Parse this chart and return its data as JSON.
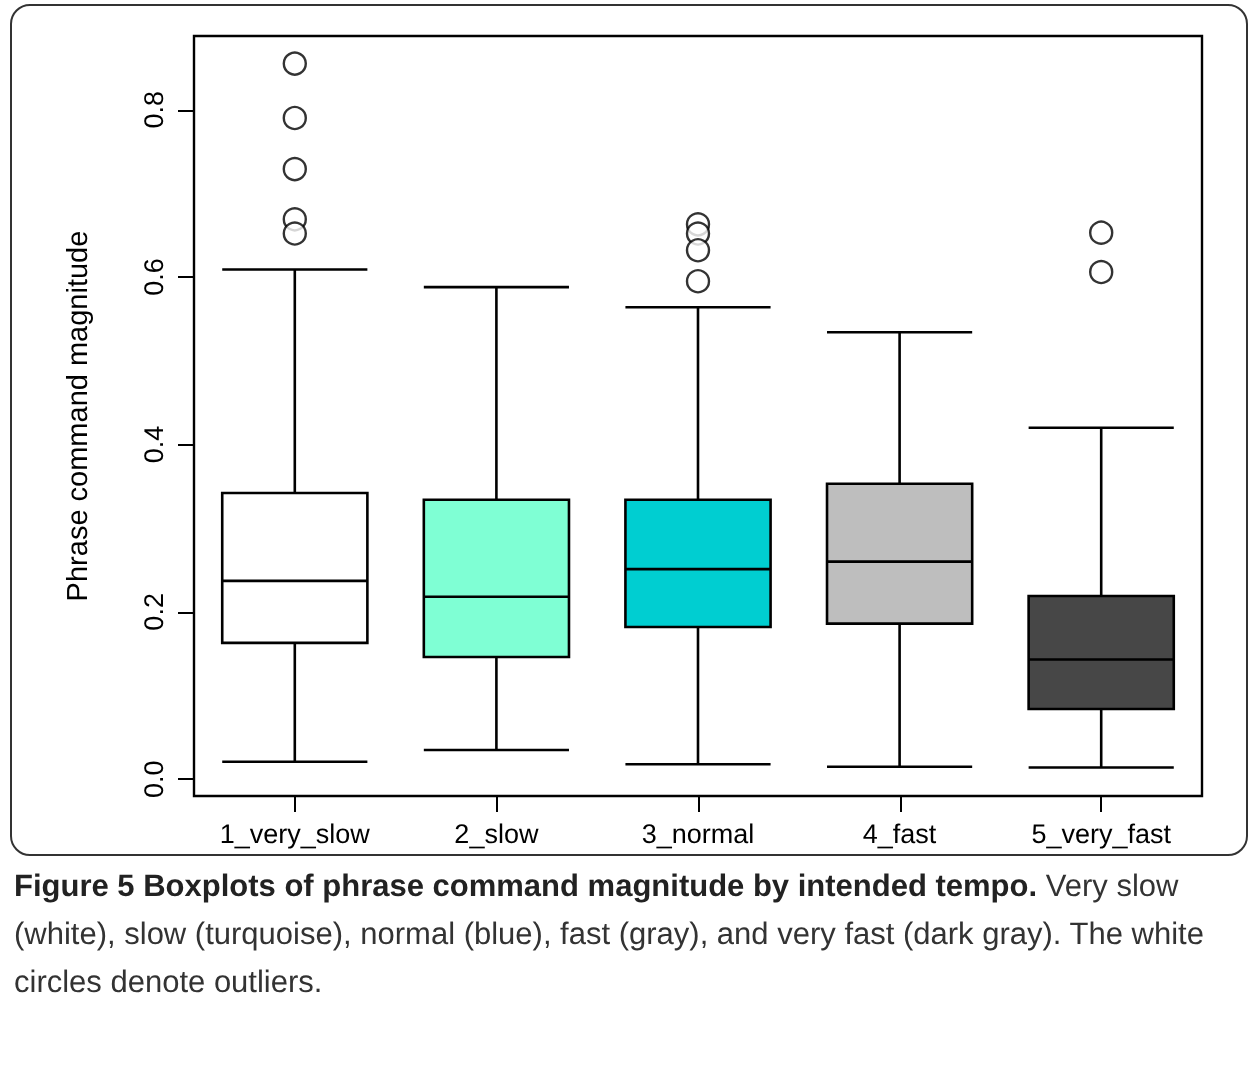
{
  "chart_data": {
    "type": "box",
    "title": "Figure 5 Boxplots of phrase command magnitude by intended tempo.",
    "annotations": [
      "Very slow (white), slow (turquoise), normal (blue), fast (gray), and very fast (dark gray). The white circles denote outliers."
    ],
    "ylabel": "Phrase command magnitude",
    "categories": [
      "1_very_slow",
      "2_slow",
      "3_normal",
      "4_fast",
      "5_very_fast"
    ],
    "colors": [
      "#ffffff",
      "#7fffd4",
      "#00ced1",
      "#bebebe",
      "#474747"
    ],
    "boxes": [
      {
        "low": 0.021,
        "q1": 0.163,
        "median": 0.237,
        "q3": 0.342,
        "high": 0.609,
        "outliers": [
          0.855,
          0.79,
          0.729,
          0.669,
          0.652
        ]
      },
      {
        "low": 0.035,
        "q1": 0.146,
        "median": 0.218,
        "q3": 0.334,
        "high": 0.588
      },
      {
        "low": 0.018,
        "q1": 0.182,
        "median": 0.251,
        "q3": 0.334,
        "high": 0.564,
        "outliers": [
          0.663,
          0.652,
          0.632,
          0.595
        ]
      },
      {
        "low": 0.015,
        "q1": 0.186,
        "median": 0.26,
        "q3": 0.353,
        "high": 0.534
      },
      {
        "low": 0.014,
        "q1": 0.084,
        "median": 0.143,
        "q3": 0.219,
        "high": 0.42,
        "outliers": [
          0.653,
          0.606
        ]
      }
    ],
    "ylim": [
      -0.02,
      0.888
    ],
    "yticks": [
      {
        "value": 0,
        "label": "0.0"
      },
      0.2,
      0.4,
      0.6,
      0.8
    ],
    "marker": "circle",
    "grid": false
  }
}
